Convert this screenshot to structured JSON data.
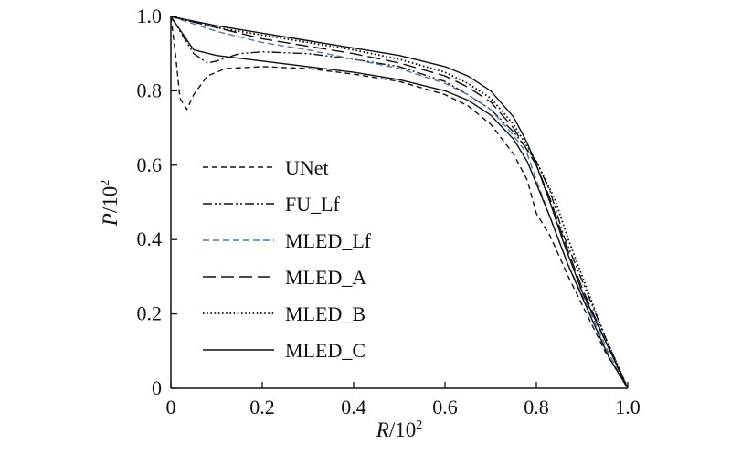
{
  "chart_data": {
    "type": "line",
    "xlabel": {
      "var": "R",
      "unit": "/10",
      "sup": "2"
    },
    "ylabel": {
      "var": "P",
      "unit": "/10",
      "sup": "2"
    },
    "xlim": [
      0,
      1.0
    ],
    "ylim": [
      0,
      1.0
    ],
    "xticks": [
      0,
      0.2,
      0.4,
      0.6,
      0.8,
      1.0
    ],
    "xtick_labels": [
      "0",
      "0.2",
      "0.4",
      "0.6",
      "0.8",
      "1.0"
    ],
    "yticks": [
      0,
      0.2,
      0.4,
      0.6,
      0.8,
      1.0
    ],
    "ytick_labels": [
      "0",
      "0.2",
      "0.4",
      "0.6",
      "0.8",
      "1.0"
    ],
    "grid": false,
    "legend_position": "left",
    "series": [
      {
        "name": "UNet",
        "style": "short-dash",
        "color": "#111111",
        "points": [
          [
            0,
            1.0
          ],
          [
            0.01,
            0.9
          ],
          [
            0.02,
            0.78
          ],
          [
            0.035,
            0.75
          ],
          [
            0.05,
            0.79
          ],
          [
            0.08,
            0.84
          ],
          [
            0.12,
            0.86
          ],
          [
            0.2,
            0.865
          ],
          [
            0.3,
            0.86
          ],
          [
            0.4,
            0.845
          ],
          [
            0.5,
            0.825
          ],
          [
            0.6,
            0.79
          ],
          [
            0.65,
            0.76
          ],
          [
            0.7,
            0.71
          ],
          [
            0.75,
            0.63
          ],
          [
            0.78,
            0.56
          ],
          [
            0.8,
            0.47
          ],
          [
            0.83,
            0.41
          ],
          [
            0.87,
            0.3
          ],
          [
            0.91,
            0.2
          ],
          [
            0.95,
            0.1
          ],
          [
            1.0,
            0.0
          ]
        ]
      },
      {
        "name": "FU_Lf",
        "style": "dash-dot-dot",
        "color": "#111111",
        "points": [
          [
            0,
            1.0
          ],
          [
            0.02,
            0.96
          ],
          [
            0.05,
            0.9
          ],
          [
            0.08,
            0.875
          ],
          [
            0.1,
            0.88
          ],
          [
            0.15,
            0.9
          ],
          [
            0.2,
            0.905
          ],
          [
            0.3,
            0.9
          ],
          [
            0.4,
            0.885
          ],
          [
            0.5,
            0.865
          ],
          [
            0.6,
            0.825
          ],
          [
            0.65,
            0.79
          ],
          [
            0.7,
            0.75
          ],
          [
            0.75,
            0.69
          ],
          [
            0.8,
            0.61
          ],
          [
            0.83,
            0.53
          ],
          [
            0.86,
            0.41
          ],
          [
            0.9,
            0.29
          ],
          [
            0.95,
            0.14
          ],
          [
            1.0,
            0.0
          ]
        ]
      },
      {
        "name": "MLED_Lf",
        "style": "medium-dash",
        "color": "#4a76a8",
        "points": [
          [
            0,
            1.0
          ],
          [
            0.1,
            0.96
          ],
          [
            0.2,
            0.93
          ],
          [
            0.3,
            0.91
          ],
          [
            0.4,
            0.885
          ],
          [
            0.5,
            0.86
          ],
          [
            0.6,
            0.82
          ],
          [
            0.65,
            0.79
          ],
          [
            0.7,
            0.75
          ],
          [
            0.75,
            0.68
          ],
          [
            0.78,
            0.63
          ],
          [
            0.8,
            0.56
          ],
          [
            0.83,
            0.46
          ],
          [
            0.87,
            0.33
          ],
          [
            0.92,
            0.2
          ],
          [
            0.96,
            0.09
          ],
          [
            1.0,
            0.0
          ]
        ]
      },
      {
        "name": "MLED_A",
        "style": "long-dash",
        "color": "#111111",
        "points": [
          [
            0,
            1.0
          ],
          [
            0.1,
            0.97
          ],
          [
            0.2,
            0.94
          ],
          [
            0.3,
            0.92
          ],
          [
            0.4,
            0.9
          ],
          [
            0.5,
            0.875
          ],
          [
            0.6,
            0.84
          ],
          [
            0.65,
            0.81
          ],
          [
            0.7,
            0.77
          ],
          [
            0.75,
            0.7
          ],
          [
            0.8,
            0.6
          ],
          [
            0.83,
            0.51
          ],
          [
            0.86,
            0.4
          ],
          [
            0.9,
            0.27
          ],
          [
            0.95,
            0.13
          ],
          [
            1.0,
            0.0
          ]
        ]
      },
      {
        "name": "MLED_B",
        "style": "dotted",
        "color": "#111111",
        "points": [
          [
            0,
            1.0
          ],
          [
            0.1,
            0.97
          ],
          [
            0.2,
            0.95
          ],
          [
            0.3,
            0.93
          ],
          [
            0.4,
            0.91
          ],
          [
            0.5,
            0.885
          ],
          [
            0.6,
            0.85
          ],
          [
            0.65,
            0.82
          ],
          [
            0.7,
            0.78
          ],
          [
            0.75,
            0.71
          ],
          [
            0.8,
            0.61
          ],
          [
            0.84,
            0.51
          ],
          [
            0.87,
            0.4
          ],
          [
            0.91,
            0.27
          ],
          [
            0.95,
            0.14
          ],
          [
            1.0,
            0.0
          ]
        ]
      },
      {
        "name": "MLED_C",
        "style": "solid",
        "color": "#111111",
        "points": [
          [
            0,
            1.0
          ],
          [
            0.1,
            0.975
          ],
          [
            0.2,
            0.955
          ],
          [
            0.3,
            0.935
          ],
          [
            0.4,
            0.915
          ],
          [
            0.5,
            0.895
          ],
          [
            0.6,
            0.865
          ],
          [
            0.65,
            0.84
          ],
          [
            0.7,
            0.8
          ],
          [
            0.75,
            0.73
          ],
          [
            0.78,
            0.66
          ],
          [
            0.8,
            0.6
          ],
          [
            0.83,
            0.5
          ],
          [
            0.86,
            0.39
          ],
          [
            0.9,
            0.26
          ],
          [
            0.95,
            0.13
          ],
          [
            1.0,
            0.0
          ]
        ]
      },
      {
        "name": "",
        "style": "solid",
        "color": "#111111",
        "points": [
          [
            0,
            1.0
          ],
          [
            0.05,
            0.91
          ],
          [
            0.1,
            0.895
          ],
          [
            0.2,
            0.88
          ],
          [
            0.3,
            0.865
          ],
          [
            0.4,
            0.85
          ],
          [
            0.5,
            0.83
          ],
          [
            0.6,
            0.8
          ],
          [
            0.65,
            0.775
          ],
          [
            0.7,
            0.735
          ],
          [
            0.75,
            0.67
          ],
          [
            0.78,
            0.61
          ],
          [
            0.8,
            0.55
          ],
          [
            0.83,
            0.46
          ],
          [
            0.87,
            0.33
          ],
          [
            0.92,
            0.19
          ],
          [
            0.96,
            0.08
          ],
          [
            1.0,
            0.0
          ]
        ]
      }
    ]
  }
}
